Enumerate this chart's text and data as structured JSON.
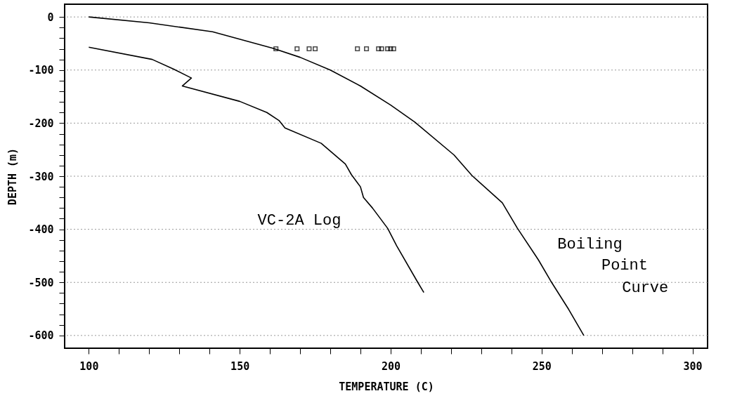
{
  "chart_data": {
    "type": "line",
    "xlabel": "TEMPERATURE (C)",
    "ylabel": "DEPTH (m)",
    "xlim": [
      92,
      305
    ],
    "ylim": [
      -624,
      24
    ],
    "xticks": [
      100,
      {
        "value": 110,
        "label": null
      },
      {
        "value": 120,
        "label": null
      },
      {
        "value": 130,
        "label": null
      },
      {
        "value": 140,
        "label": null
      },
      150,
      {
        "value": 160,
        "label": null
      },
      {
        "value": 170,
        "label": null
      },
      {
        "value": 180,
        "label": null
      },
      {
        "value": 190,
        "label": null
      },
      200,
      {
        "value": 210,
        "label": null
      },
      {
        "value": 220,
        "label": null
      },
      {
        "value": 230,
        "label": null
      },
      {
        "value": 240,
        "label": null
      },
      250,
      {
        "value": 260,
        "label": null
      },
      {
        "value": 270,
        "label": null
      },
      {
        "value": 280,
        "label": null
      },
      {
        "value": 290,
        "label": null
      },
      300
    ],
    "yticks": [
      0,
      {
        "value": -20,
        "label": null
      },
      {
        "value": -40,
        "label": null
      },
      {
        "value": -60,
        "label": null
      },
      {
        "value": -80,
        "label": null
      },
      -100,
      {
        "value": -120,
        "label": null
      },
      {
        "value": -140,
        "label": null
      },
      {
        "value": -160,
        "label": null
      },
      {
        "value": -180,
        "label": null
      },
      -200,
      {
        "value": -220,
        "label": null
      },
      {
        "value": -240,
        "label": null
      },
      {
        "value": -260,
        "label": null
      },
      {
        "value": -280,
        "label": null
      },
      -300,
      {
        "value": -320,
        "label": null
      },
      {
        "value": -340,
        "label": null
      },
      {
        "value": -360,
        "label": null
      },
      {
        "value": -380,
        "label": null
      },
      -400,
      {
        "value": -420,
        "label": null
      },
      {
        "value": -440,
        "label": null
      },
      {
        "value": -460,
        "label": null
      },
      {
        "value": -480,
        "label": null
      },
      -500,
      {
        "value": -520,
        "label": null
      },
      {
        "value": -540,
        "label": null
      },
      {
        "value": -560,
        "label": null
      },
      {
        "value": -580,
        "label": null
      },
      -600
    ],
    "grid": "y",
    "line_style": "solid",
    "series": [
      {
        "color": "#000000",
        "x": [
          100,
          120,
          141,
          161,
          170,
          180,
          190,
          200,
          208,
          221,
          227,
          237,
          242,
          249,
          253,
          259,
          264
        ],
        "values": [
          0,
          -11,
          -28,
          -59,
          -76,
          -100,
          -130,
          -166,
          -198,
          -260,
          -299,
          -350,
          -398,
          -458,
          -497,
          -551,
          -600
        ]
      },
      {
        "color": "#000000",
        "x": [
          100,
          121,
          128,
          134,
          131,
          150,
          159,
          163,
          165,
          177,
          185,
          187,
          190,
          191,
          194,
          199,
          202,
          209,
          211
        ],
        "values": [
          -57,
          -80,
          -98,
          -115,
          -130,
          -159,
          -180,
          -195,
          -209,
          -238,
          -277,
          -297,
          -320,
          -340,
          -360,
          -398,
          -431,
          -500,
          -519
        ]
      },
      {
        "type": "scatter",
        "marker": "square",
        "color": "#000000",
        "x": [
          162,
          169,
          173,
          175,
          189,
          192,
          196,
          197,
          199,
          200,
          201
        ],
        "values": [
          -60,
          -60,
          -60,
          -60,
          -60,
          -60,
          -60,
          -60,
          -60,
          -60,
          -60
        ]
      }
    ],
    "annotations": [
      "VC-2A Log",
      "Boiling",
      "Point",
      "Curve"
    ]
  }
}
